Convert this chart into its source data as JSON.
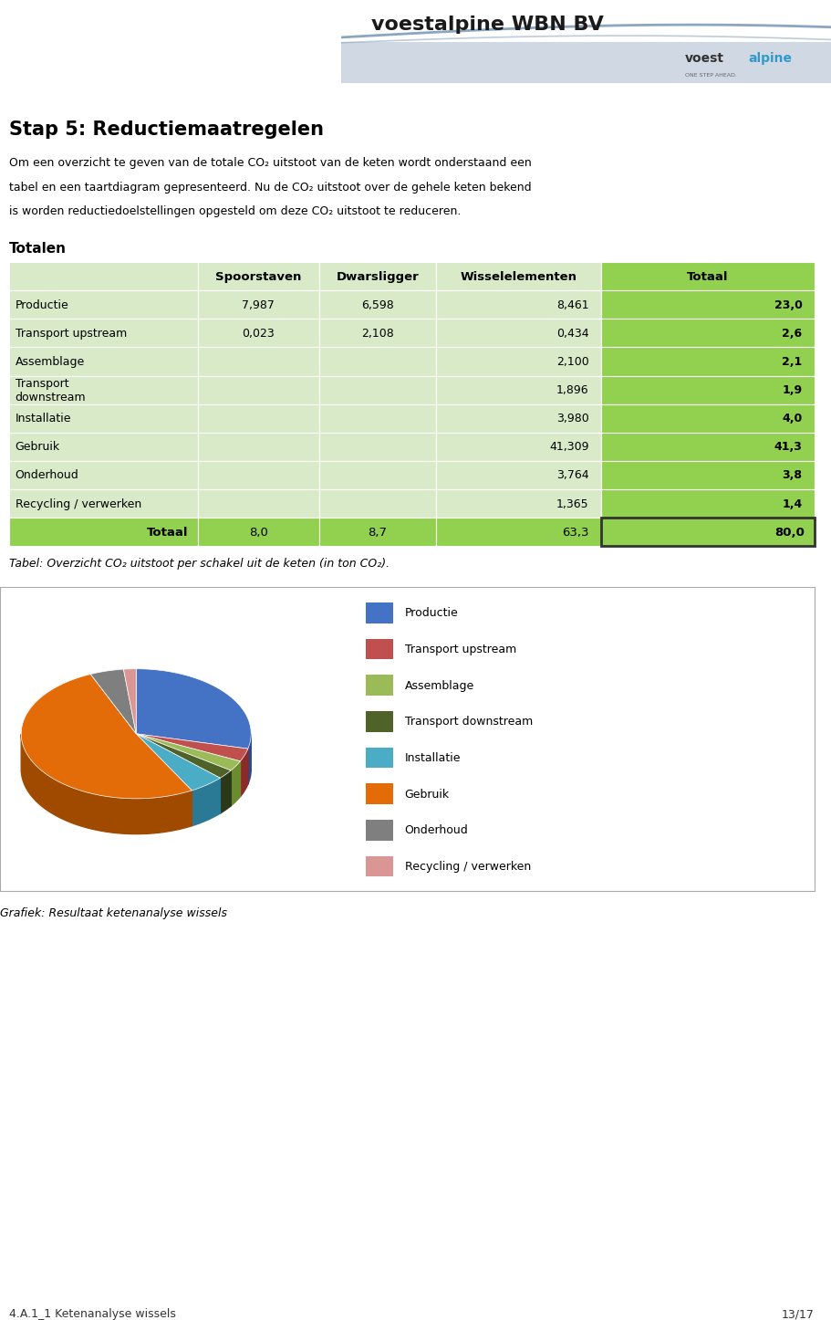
{
  "page_title": "Stap 5: Reductiemaatregelen",
  "intro_line1": "Om een overzicht te geven van de totale CO₂ uitstoot van de keten wordt onderstaand een",
  "intro_line2": "tabel en een taartdiagram gepresenteerd. Nu de CO₂ uitstoot over de gehele keten bekend",
  "intro_line3": "is worden reductiedoelstellingen opgesteld om deze CO₂ uitstoot te reduceren.",
  "section_label": "Totalen",
  "col_headers": [
    "",
    "Spoorstaven",
    "Dwarsligger",
    "Wisselelementen",
    "Totaal"
  ],
  "row_labels": [
    "Productie",
    "Transport upstream",
    "Assemblage",
    "Transport\ndownstream",
    "Installatie",
    "Gebruik",
    "Onderhoud",
    "Recycling / verwerken",
    "Totaal"
  ],
  "col1": [
    "7,987",
    "0,023",
    "",
    "",
    "",
    "",
    "",
    "",
    "8,0"
  ],
  "col2": [
    "6,598",
    "2,108",
    "",
    "",
    "",
    "",
    "",
    "",
    "8,7"
  ],
  "col3": [
    "8,461",
    "0,434",
    "2,100",
    "1,896",
    "3,980",
    "41,309",
    "3,764",
    "1,365",
    "63,3"
  ],
  "col4": [
    "23,0",
    "2,6",
    "2,1",
    "1,9",
    "4,0",
    "41,3",
    "3,8",
    "1,4",
    "80,0"
  ],
  "table_caption": "Tabel: Overzicht CO₂ uitstoot per schakel uit de keten (in ton CO₂).",
  "pie_labels": [
    "Productie",
    "Transport upstream",
    "Assemblage",
    "Transport downstream",
    "Installatie",
    "Gebruik",
    "Onderhoud",
    "Recycling / verwerken"
  ],
  "pie_values": [
    23.0,
    2.6,
    2.1,
    1.9,
    4.0,
    41.3,
    3.8,
    1.4
  ],
  "pie_colors": [
    "#4472C4",
    "#C0504D",
    "#9BBB59",
    "#4F6228",
    "#4BACC6",
    "#E36C09",
    "#7F7F7F",
    "#D99694"
  ],
  "pie_dark_colors": [
    "#2A4A8A",
    "#8B2A28",
    "#6A8B30",
    "#2A3A18",
    "#2A7A96",
    "#A04A00",
    "#555555",
    "#A06664"
  ],
  "chart_caption": "Grafiek: Resultaat ketenanalyse wissels",
  "footer_left": "4.A.1_1 Ketenanalyse wissels",
  "footer_right": "13/17",
  "header_title": "voestalpine WBN BV",
  "bg_color": "#FFFFFF",
  "table_light_bg": "#D8EAC8",
  "table_green_bg": "#92D050",
  "header_bg1": "#B8C8D8",
  "header_bg2": "#D0D8E4"
}
